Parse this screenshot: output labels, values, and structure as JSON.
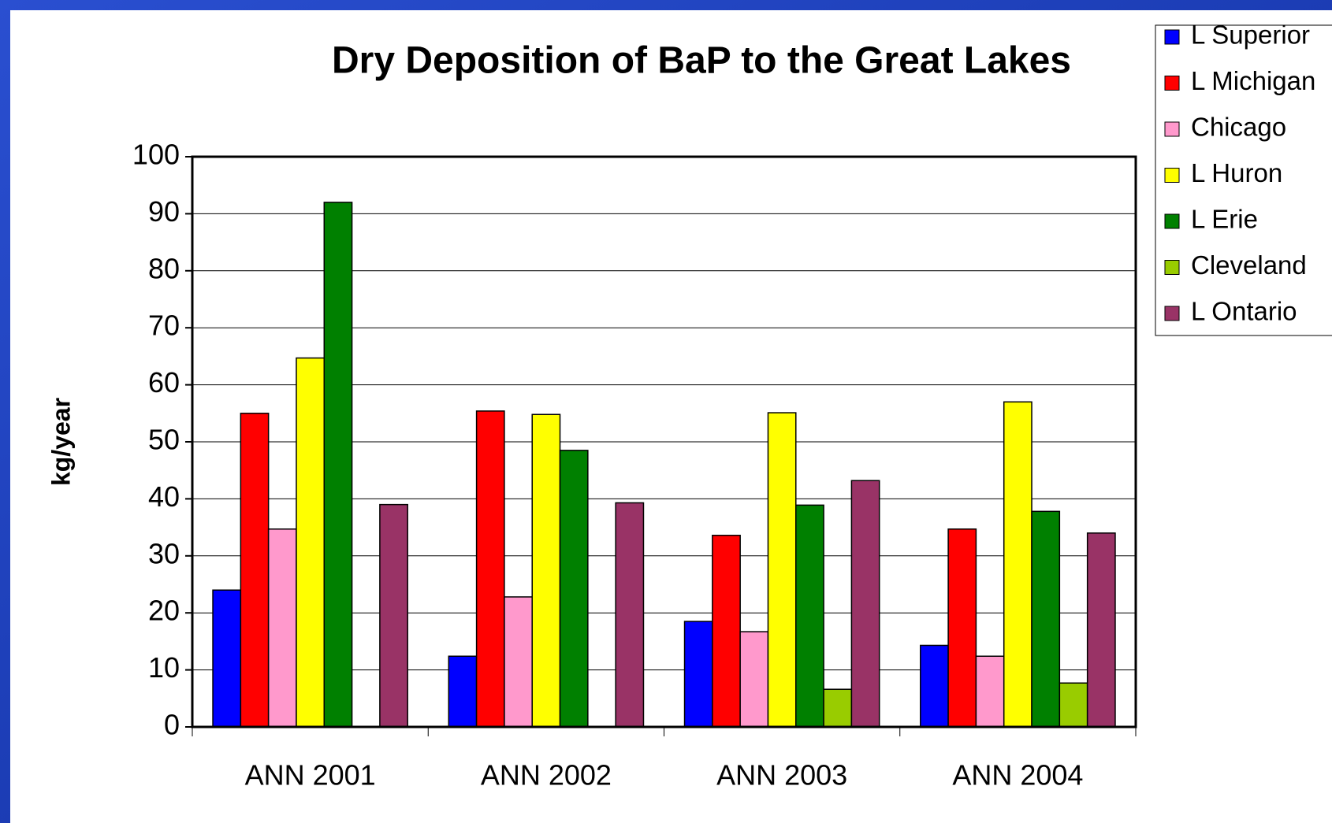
{
  "chart_data": {
    "type": "bar",
    "title": "Dry Deposition of BaP to the Great Lakes",
    "y_label": "kg/year",
    "categories": [
      "ANN 2001",
      "ANN 2002",
      "ANN 2003",
      "ANN 2004"
    ],
    "series": [
      {
        "name": "L Superior",
        "color": "#0000ff",
        "values": [
          24,
          12.4,
          18.5,
          14.3
        ]
      },
      {
        "name": "L Michigan",
        "color": "#ff0000",
        "values": [
          55,
          55.4,
          33.6,
          34.7
        ]
      },
      {
        "name": "Chicago",
        "color": "#ff99cc",
        "values": [
          34.7,
          22.8,
          16.7,
          12.4
        ]
      },
      {
        "name": "L Huron",
        "color": "#ffff00",
        "values": [
          64.7,
          54.8,
          55.1,
          57
        ]
      },
      {
        "name": "L Erie",
        "color": "#008000",
        "values": [
          92,
          48.5,
          38.9,
          37.8
        ]
      },
      {
        "name": "Cleveland",
        "color": "#99cc00",
        "values": [
          null,
          null,
          6.6,
          7.7
        ]
      },
      {
        "name": "L Ontario",
        "color": "#993366",
        "values": [
          39,
          39.3,
          43.2,
          34
        ]
      }
    ],
    "ylim": [
      0,
      100
    ],
    "yticks": [
      0,
      10,
      20,
      30,
      40,
      50,
      60,
      70,
      80,
      90,
      100
    ],
    "grid": true,
    "legend": "right"
  }
}
